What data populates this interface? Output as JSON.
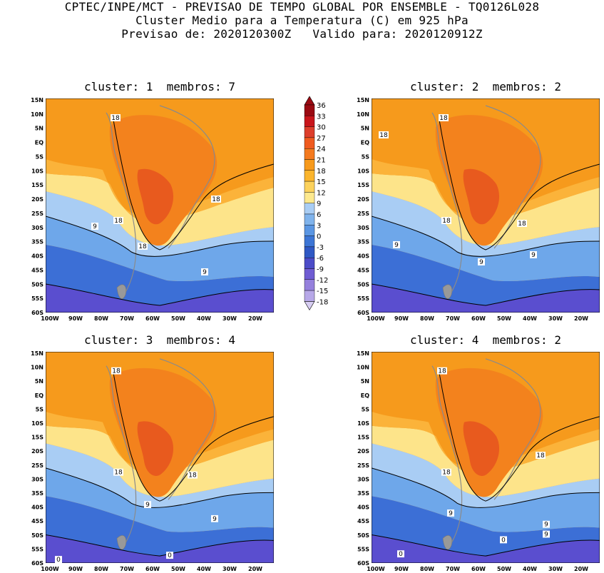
{
  "title": {
    "line1": "CPTEC/INPE/MCT - PREVISAO DE TEMPO GLOBAL POR ENSEMBLE - TQ0126L028",
    "line2": "Cluster Medio para a Temperatura (C) em 925 hPa",
    "line3": "Previsao de: 2020120300Z   Valido para: 2020120912Z"
  },
  "panels": [
    {
      "title": "cluster: 1  membros: 7",
      "labels": {
        "a": "18",
        "b": "18",
        "c": "18",
        "d": "18",
        "e": "9",
        "f": "9"
      }
    },
    {
      "title": "cluster: 2  membros: 2",
      "labels": {
        "a": "18",
        "b": "18",
        "c": "18",
        "d": "18",
        "e": "9",
        "f": "9",
        "g": "9"
      }
    },
    {
      "title": "cluster: 3  membros: 4",
      "labels": {
        "a": "18",
        "b": "18",
        "c": "18",
        "d": "9",
        "e": "9",
        "f": "0",
        "g": "0"
      }
    },
    {
      "title": "cluster: 4  membros: 2",
      "labels": {
        "a": "18",
        "b": "18",
        "c": "18",
        "d": "9",
        "e": "9",
        "f": "9",
        "g": "0",
        "h": "0"
      }
    }
  ],
  "lat_ticks": [
    "15N",
    "10N",
    "5N",
    "EQ",
    "5S",
    "10S",
    "15S",
    "20S",
    "25S",
    "30S",
    "35S",
    "40S",
    "45S",
    "50S",
    "55S",
    "60S"
  ],
  "lon_ticks": [
    "100W",
    "90W",
    "80W",
    "70W",
    "60W",
    "50W",
    "40W",
    "30W",
    "20W"
  ],
  "legend": {
    "levels": [
      "36",
      "33",
      "30",
      "27",
      "24",
      "21",
      "18",
      "15",
      "12",
      "9",
      "6",
      "3",
      "0",
      "-3",
      "-6",
      "-9",
      "-12",
      "-15",
      "-18"
    ],
    "colors": [
      "#9a0a12",
      "#c8151b",
      "#dd3e2b",
      "#ef5a1f",
      "#f47a1f",
      "#f79a1c",
      "#fbb52d",
      "#fcd25c",
      "#fde98e",
      "#a9cdf4",
      "#7fb3ec",
      "#5a96e3",
      "#3c75d5",
      "#2f58c4",
      "#4c4cc8",
      "#6f5cd3",
      "#9580dd",
      "#b7a8e8",
      "#d8cef3"
    ]
  },
  "colors": {
    "field_hot": "#e85a1e",
    "field_warm": "#f3821d",
    "field_orange": "#f69a1c",
    "field_light_orange": "#fbb33a",
    "field_yellow": "#fde48a",
    "field_light_blue": "#a9cdf4",
    "field_blue": "#6ea7ea",
    "field_deep_blue": "#3c6fd6",
    "field_purple": "#5a4ecf",
    "coast": "#8a8a8a",
    "contour": "#000000"
  }
}
